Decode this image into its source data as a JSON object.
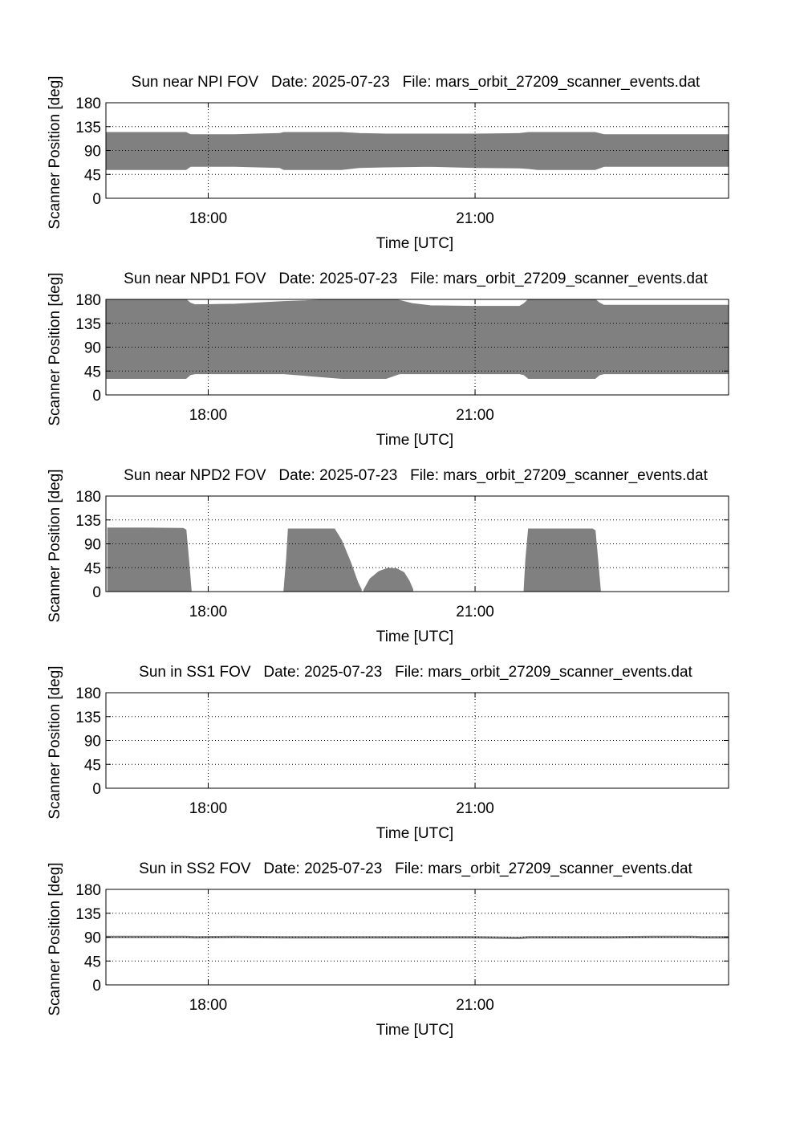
{
  "colors": {
    "fill": "#808080",
    "axis": "#000000",
    "grid": "#000000",
    "background": "#ffffff"
  },
  "chart_data": [
    {
      "type": "area",
      "title": "Sun near NPI FOV   Date: 2025-07-23   File: mars_orbit_27209_scanner_events.dat",
      "xlabel": "Time [UTC]",
      "ylabel": "Scanner Position [deg]",
      "x_ticks": [
        "18:00",
        "21:00"
      ],
      "y_ticks": [
        "0",
        "45",
        "90",
        "135",
        "180"
      ],
      "xlim": [
        16.85,
        23.85
      ],
      "ylim": [
        0,
        180
      ],
      "grid": true,
      "bands": [
        {
          "x": [
            16.85,
            17.5,
            17.75,
            17.8,
            18.0,
            18.3,
            18.8,
            18.85,
            19.0,
            19.5,
            19.7,
            20.0,
            20.5,
            21.0,
            21.5,
            21.6,
            21.7,
            22.0,
            22.35,
            22.45,
            22.8,
            23.85
          ],
          "upper": [
            124,
            124,
            124,
            120,
            120,
            120,
            122,
            124,
            124,
            124,
            122,
            121,
            121,
            121,
            122,
            124,
            124,
            124,
            124,
            120,
            120,
            120
          ],
          "lower": [
            54,
            54,
            54,
            60,
            60,
            60,
            58,
            54,
            54,
            54,
            58,
            59,
            60,
            58,
            57,
            56,
            54,
            54,
            54,
            60,
            60,
            60
          ]
        }
      ]
    },
    {
      "type": "area",
      "title": "Sun near NPD1 FOV   Date: 2025-07-23   File: mars_orbit_27209_scanner_events.dat",
      "xlabel": "Time [UTC]",
      "ylabel": "Scanner Position [deg]",
      "x_ticks": [
        "18:00",
        "21:00"
      ],
      "y_ticks": [
        "0",
        "45",
        "90",
        "135",
        "180"
      ],
      "xlim": [
        16.85,
        23.85
      ],
      "ylim": [
        0,
        180
      ],
      "grid": true,
      "bands": [
        {
          "x": [
            16.85,
            17.75,
            17.8,
            17.85,
            18.3,
            18.85,
            19.5,
            20.0,
            20.15,
            20.3,
            20.5,
            21.0,
            21.5,
            21.55,
            21.6,
            22.0,
            22.35,
            22.4,
            22.45,
            23.85
          ],
          "upper": [
            180,
            180,
            173,
            170,
            171,
            176,
            180,
            180,
            178,
            172,
            168,
            167,
            167,
            172,
            180,
            180,
            180,
            173,
            169,
            169
          ],
          "lower": [
            31,
            31,
            38,
            40,
            40,
            40,
            31,
            31,
            40,
            40,
            40,
            40,
            40,
            38,
            31,
            31,
            31,
            38,
            40,
            40
          ]
        }
      ]
    },
    {
      "type": "area",
      "title": "Sun near NPD2 FOV   Date: 2025-07-23   File: mars_orbit_27209_scanner_events.dat",
      "xlabel": "Time [UTC]",
      "ylabel": "Scanner Position [deg]",
      "x_ticks": [
        "18:00",
        "21:00"
      ],
      "y_ticks": [
        "0",
        "45",
        "90",
        "135",
        "180"
      ],
      "xlim": [
        16.85,
        23.85
      ],
      "ylim": [
        0,
        180
      ],
      "grid": true,
      "bands": [
        {
          "x": [
            16.87,
            16.9,
            17.3,
            17.72,
            17.75,
            17.78,
            17.81
          ],
          "upper": [
            120,
            120,
            120,
            119,
            116,
            60,
            0
          ],
          "lower": [
            0,
            0,
            0,
            0,
            0,
            0,
            0
          ]
        },
        {
          "x": [
            18.85,
            18.88,
            18.9,
            19.2,
            19.42,
            19.5,
            19.6,
            19.68,
            19.72
          ],
          "upper": [
            0,
            60,
            118,
            118,
            118,
            96,
            55,
            18,
            4
          ],
          "lower": [
            0,
            0,
            0,
            0,
            0,
            0,
            0,
            0,
            0
          ]
        },
        {
          "x": [
            19.75,
            19.82,
            19.92,
            20.02,
            20.12,
            20.2,
            20.26,
            20.3
          ],
          "upper": [
            3,
            24,
            38,
            44,
            43,
            36,
            20,
            4
          ],
          "lower": [
            0,
            0,
            0,
            0,
            0,
            0,
            0,
            0
          ]
        },
        {
          "x": [
            21.55,
            21.57,
            21.6,
            22.0,
            22.32,
            22.35,
            22.38,
            22.41
          ],
          "upper": [
            0,
            60,
            118,
            118,
            118,
            115,
            60,
            0
          ],
          "lower": [
            0,
            0,
            0,
            0,
            0,
            0,
            0,
            0
          ]
        }
      ]
    },
    {
      "type": "area",
      "title": "Sun in SS1 FOV   Date: 2025-07-23   File: mars_orbit_27209_scanner_events.dat",
      "xlabel": "Time [UTC]",
      "ylabel": "Scanner Position [deg]",
      "x_ticks": [
        "18:00",
        "21:00"
      ],
      "y_ticks": [
        "0",
        "45",
        "90",
        "135",
        "180"
      ],
      "xlim": [
        16.85,
        23.85
      ],
      "ylim": [
        0,
        180
      ],
      "grid": true,
      "bands": []
    },
    {
      "type": "area",
      "title": "Sun in SS2 FOV   Date: 2025-07-23   File: mars_orbit_27209_scanner_events.dat",
      "xlabel": "Time [UTC]",
      "ylabel": "Scanner Position [deg]",
      "x_ticks": [
        "18:00",
        "21:00"
      ],
      "y_ticks": [
        "0",
        "45",
        "90",
        "135",
        "180"
      ],
      "xlim": [
        16.85,
        23.85
      ],
      "ylim": [
        0,
        180
      ],
      "grid": true,
      "bands": [
        {
          "x": [
            16.85,
            17.75,
            17.85,
            18.3,
            18.85,
            19.5,
            21.0,
            21.5,
            21.6,
            22.0,
            22.35,
            22.45,
            23.0,
            23.45,
            23.55,
            23.85
          ],
          "upper": [
            92,
            92,
            91,
            92,
            91,
            91,
            91,
            90,
            91,
            91,
            91,
            91,
            92,
            92,
            91,
            91
          ],
          "lower": [
            89,
            89,
            88,
            89,
            88,
            88,
            88,
            87,
            88,
            88,
            88,
            88,
            89,
            89,
            88,
            88
          ]
        }
      ]
    }
  ]
}
